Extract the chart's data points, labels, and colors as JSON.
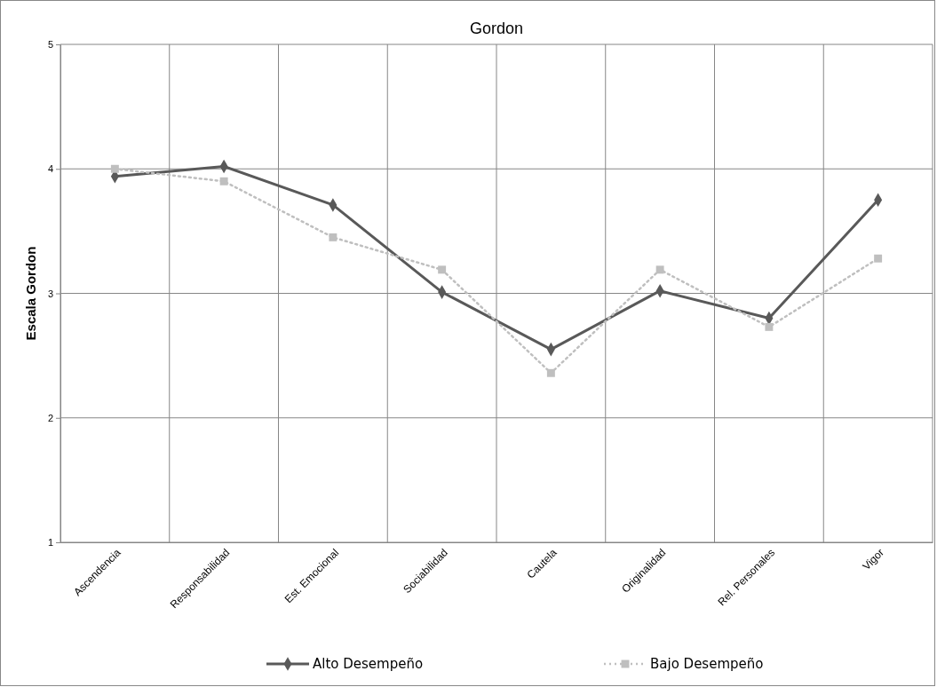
{
  "chart_data": {
    "type": "line",
    "title": "Gordon",
    "ylabel": "Escala Gordon",
    "categories": [
      "Ascendencia",
      "Responsabilidad",
      "Est. Emocional",
      "Sociabilidad",
      "Cautela",
      "Originalidad",
      "Rel. Personales",
      "Vigor"
    ],
    "series": [
      {
        "name": "Alto Desempeño",
        "color": "#595959",
        "marker": "diamond",
        "line_style": "solid",
        "values": [
          3.94,
          4.02,
          3.71,
          3.01,
          2.55,
          3.02,
          2.8,
          3.75
        ]
      },
      {
        "name": "Bajo Desempeño",
        "color": "#bfbfbf",
        "marker": "square",
        "line_style": "dotted",
        "values": [
          4.0,
          3.9,
          3.45,
          3.19,
          2.36,
          3.19,
          2.73,
          3.28
        ]
      }
    ],
    "ylim": [
      1,
      5
    ],
    "yticks": [
      1,
      2,
      3,
      4,
      5
    ],
    "grid": true,
    "legend": "bottom"
  }
}
